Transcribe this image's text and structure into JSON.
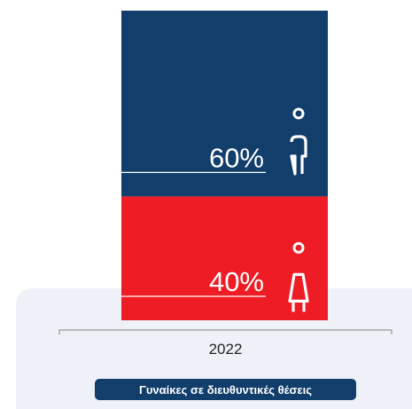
{
  "chart_data": {
    "type": "bar",
    "stacked": true,
    "categories": [
      "2022"
    ],
    "series": [
      {
        "color": "#ee1c25",
        "values": [
          40
        ],
        "value_labels": [
          "40%"
        ]
      },
      {
        "color": "#123e6b",
        "values": [
          60
        ],
        "value_labels": [
          "60%"
        ]
      }
    ],
    "ylim": [
      0,
      100
    ]
  },
  "button": {
    "label": "Γυναίκες σε διευθυντικές θέσεις"
  }
}
